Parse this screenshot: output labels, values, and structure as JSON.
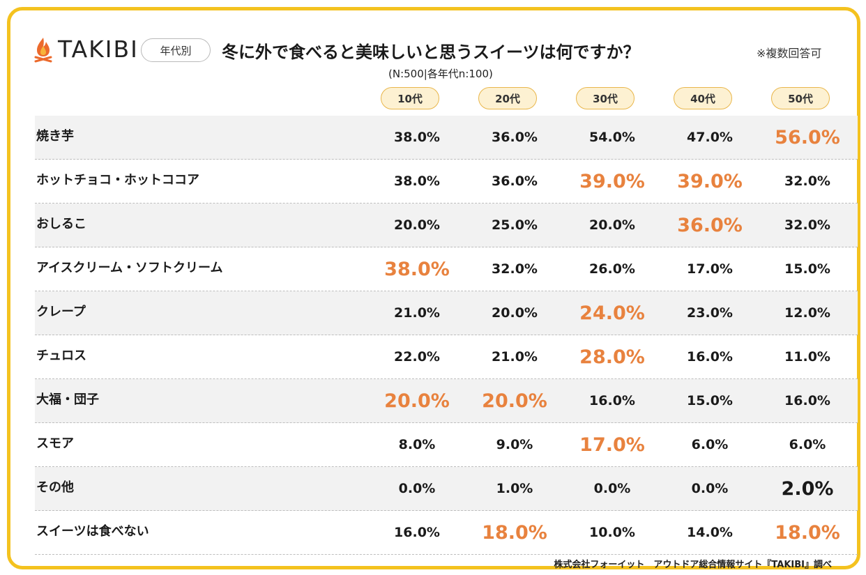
{
  "brand": {
    "logo_text": "TAKIBI",
    "logo_icon": "campfire-icon",
    "accent": "#f4c21f",
    "highlight": "#e8823e"
  },
  "header": {
    "pill": "年代別",
    "title": "冬に外で食べると美味しいと思うスイーツは何ですか？",
    "note": "※複数回答可",
    "sample": "(N:500|各年代n:100)"
  },
  "chart_data": {
    "type": "table",
    "columns": [
      "10代",
      "20代",
      "30代",
      "40代",
      "50代"
    ],
    "unit": "%",
    "rows": [
      {
        "label": "焼き芋",
        "values": [
          "38.0%",
          "36.0%",
          "54.0%",
          "47.0%",
          "56.0%"
        ],
        "highlight": [
          4
        ]
      },
      {
        "label": "ホットチョコ・ホットココア",
        "values": [
          "38.0%",
          "36.0%",
          "39.0%",
          "39.0%",
          "32.0%"
        ],
        "highlight": [
          2,
          3
        ]
      },
      {
        "label": "おしるこ",
        "values": [
          "20.0%",
          "25.0%",
          "20.0%",
          "36.0%",
          "32.0%"
        ],
        "highlight": [
          3
        ]
      },
      {
        "label": "アイスクリーム・ソフトクリーム",
        "values": [
          "38.0%",
          "32.0%",
          "26.0%",
          "17.0%",
          "15.0%"
        ],
        "highlight": [
          0
        ]
      },
      {
        "label": "クレープ",
        "values": [
          "21.0%",
          "20.0%",
          "24.0%",
          "23.0%",
          "12.0%"
        ],
        "highlight": [
          2
        ]
      },
      {
        "label": "チュロス",
        "values": [
          "22.0%",
          "21.0%",
          "28.0%",
          "16.0%",
          "11.0%"
        ],
        "highlight": [
          2
        ]
      },
      {
        "label": "大福・団子",
        "values": [
          "20.0%",
          "20.0%",
          "16.0%",
          "15.0%",
          "16.0%"
        ],
        "highlight": [
          0,
          1
        ]
      },
      {
        "label": "スモア",
        "values": [
          "8.0%",
          "9.0%",
          "17.0%",
          "6.0%",
          "6.0%"
        ],
        "highlight": [
          2
        ]
      },
      {
        "label": "その他",
        "values": [
          "0.0%",
          "1.0%",
          "0.0%",
          "0.0%",
          "2.0%"
        ],
        "highlight": [],
        "emphasis": [
          4
        ]
      },
      {
        "label": "スイーツは食べない",
        "values": [
          "16.0%",
          "18.0%",
          "10.0%",
          "14.0%",
          "18.0%"
        ],
        "highlight": [
          1,
          4
        ]
      }
    ]
  },
  "footer": {
    "credit": "株式会社フォーイット　アウトドア総合情報サイト『TAKIBI』調べ"
  }
}
